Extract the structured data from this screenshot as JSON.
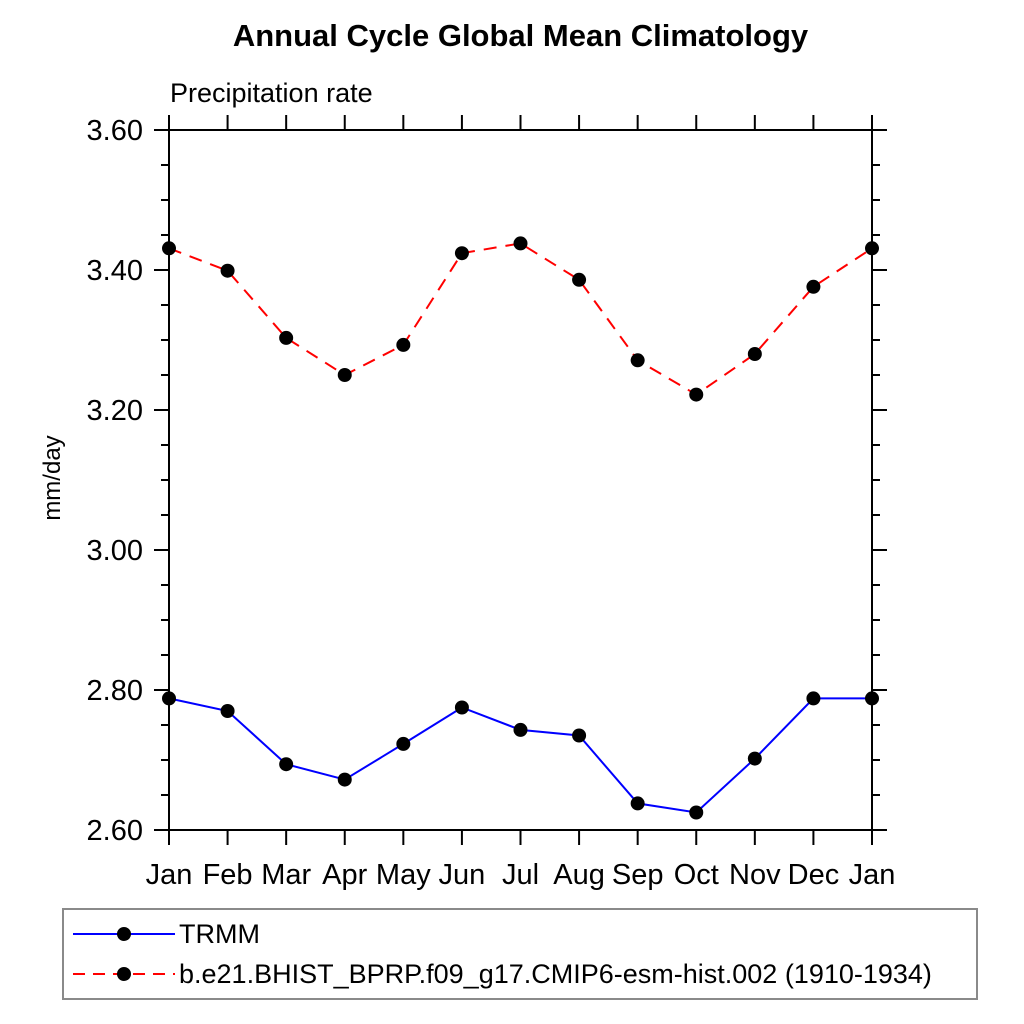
{
  "header": {
    "title": "Annual Cycle Global Mean Climatology",
    "subtitle": "Precipitation rate"
  },
  "y_axis": {
    "label": "mm/day",
    "tick_labels": [
      "2.60",
      "2.80",
      "3.00",
      "3.20",
      "3.40",
      "3.60"
    ]
  },
  "legend": {
    "items": [
      {
        "label": "TRMM",
        "color": "#0000ff",
        "style": "solid",
        "marker_color": "#000000"
      },
      {
        "label": "b.e21.BHIST_BPRP.f09_g17.CMIP6-esm-hist.002 (1910-1934)",
        "color": "#ff0000",
        "style": "dashed",
        "marker_color": "#000000"
      }
    ]
  },
  "chart_data": {
    "type": "line",
    "title": "Annual Cycle Global Mean Climatology",
    "subtitle": "Precipitation rate",
    "ylabel": "mm/day",
    "xlabel": "",
    "categories": [
      "Jan",
      "Feb",
      "Mar",
      "Apr",
      "May",
      "Jun",
      "Jul",
      "Aug",
      "Sep",
      "Oct",
      "Nov",
      "Dec",
      "Jan"
    ],
    "ylim": [
      2.6,
      3.6
    ],
    "ytick_major": 0.2,
    "ytick_minor": 0.05,
    "grid": false,
    "legend_position": "bottom-left-box",
    "axis_color": "#000000",
    "series": [
      {
        "name": "TRMM",
        "color": "#0000ff",
        "style": "solid",
        "marker": "circle",
        "marker_color": "#000000",
        "values": [
          2.788,
          2.77,
          2.694,
          2.672,
          2.723,
          2.775,
          2.743,
          2.735,
          2.638,
          2.625,
          2.702,
          2.788,
          2.788
        ]
      },
      {
        "name": "b.e21.BHIST_BPRP.f09_g17.CMIP6-esm-hist.002 (1910-1934)",
        "color": "#ff0000",
        "style": "dashed",
        "marker": "circle",
        "marker_color": "#000000",
        "values": [
          3.431,
          3.399,
          3.303,
          3.25,
          3.293,
          3.424,
          3.438,
          3.386,
          3.271,
          3.222,
          3.28,
          3.376,
          3.431
        ]
      }
    ]
  }
}
